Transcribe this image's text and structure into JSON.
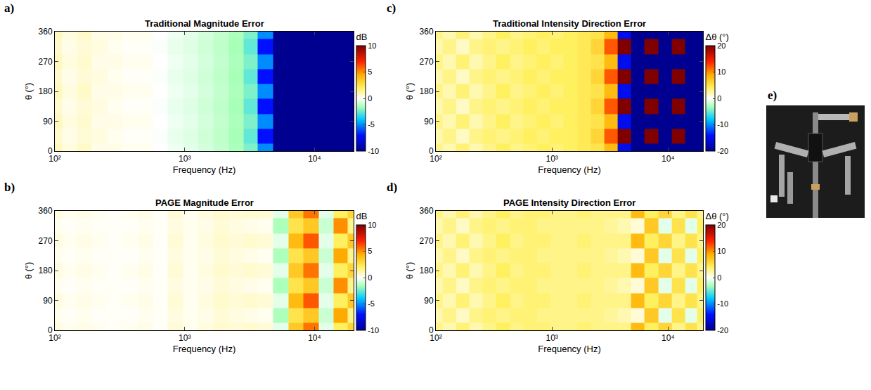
{
  "chart_data": [
    {
      "type": "heatmap",
      "label": "a)",
      "title": "Traditional Magnitude Error",
      "xlabel": "Frequency (Hz)",
      "ylabel": "θ (°)",
      "log": "x",
      "xlim": [
        100,
        20000
      ],
      "xticks": [
        {
          "value": 100,
          "label": "10²"
        },
        {
          "value": 1000,
          "label": "10³"
        },
        {
          "value": 10000,
          "label": "10⁴"
        }
      ],
      "ylim": [
        0,
        360
      ],
      "yticks": [
        0,
        90,
        180,
        270,
        360
      ],
      "x": [
        100,
        130,
        170,
        220,
        290,
        380,
        500,
        650,
        850,
        1100,
        1450,
        1900,
        2500,
        3200,
        4200,
        5500,
        7200,
        9400,
        12300,
        16000,
        20000
      ],
      "y": [
        0,
        45,
        90,
        135,
        180,
        225,
        270,
        315,
        360
      ],
      "z": [
        [
          0.8,
          0.4,
          0.7,
          0.3,
          0.3,
          0.2,
          0.2,
          0.0,
          -0.3,
          -0.5,
          -0.8,
          -1.1,
          -1.5,
          -2.2,
          -5.0,
          -12,
          -16,
          -17,
          -16,
          -18,
          -18
        ],
        [
          0.6,
          0.3,
          0.5,
          0.4,
          0.2,
          0.1,
          0.1,
          -0.1,
          -0.4,
          -0.6,
          -0.9,
          -1.2,
          -1.6,
          -2.6,
          -7.0,
          -13,
          -15,
          -16,
          -18,
          -17,
          -19
        ],
        [
          0.8,
          0.4,
          0.6,
          0.3,
          0.3,
          0.2,
          0.2,
          0.0,
          -0.3,
          -0.5,
          -0.8,
          -1.1,
          -1.5,
          -2.2,
          -5.0,
          -12,
          -16,
          -17,
          -16,
          -18,
          -18
        ],
        [
          0.6,
          0.3,
          0.5,
          0.4,
          0.2,
          0.1,
          0.1,
          -0.1,
          -0.4,
          -0.6,
          -0.9,
          -1.2,
          -1.6,
          -2.6,
          -7.0,
          -13,
          -15,
          -16,
          -18,
          -17,
          -19
        ],
        [
          0.8,
          0.4,
          0.7,
          0.3,
          0.3,
          0.2,
          0.2,
          0.0,
          -0.3,
          -0.5,
          -0.8,
          -1.1,
          -1.5,
          -2.2,
          -5.0,
          -12,
          -16,
          -17,
          -16,
          -18,
          -18
        ],
        [
          0.6,
          0.3,
          0.5,
          0.4,
          0.2,
          0.1,
          0.1,
          -0.1,
          -0.4,
          -0.6,
          -0.9,
          -1.2,
          -1.6,
          -2.6,
          -7.0,
          -13,
          -15,
          -16,
          -18,
          -17,
          -19
        ],
        [
          0.8,
          0.4,
          0.6,
          0.3,
          0.3,
          0.2,
          0.2,
          0.0,
          -0.3,
          -0.5,
          -0.8,
          -1.1,
          -1.5,
          -2.2,
          -5.0,
          -12,
          -16,
          -17,
          -16,
          -18,
          -18
        ],
        [
          0.6,
          0.3,
          0.5,
          0.4,
          0.2,
          0.1,
          0.1,
          -0.1,
          -0.4,
          -0.6,
          -0.9,
          -1.2,
          -1.6,
          -2.6,
          -7.0,
          -13,
          -15,
          -16,
          -18,
          -17,
          -19
        ],
        [
          0.8,
          0.4,
          0.7,
          0.3,
          0.3,
          0.2,
          0.2,
          0.0,
          -0.3,
          -0.5,
          -0.8,
          -1.1,
          -1.5,
          -2.2,
          -5.0,
          -12,
          -16,
          -17,
          -16,
          -18,
          -18
        ]
      ],
      "colorbar": {
        "range": [
          -10,
          10
        ],
        "ticks": [
          -10,
          -5,
          0,
          5,
          10
        ],
        "title": "dB"
      }
    },
    {
      "type": "heatmap",
      "label": "b)",
      "title": "PAGE Magnitude Error",
      "xlabel": "Frequency (Hz)",
      "ylabel": "θ (°)",
      "log": "x",
      "xlim": [
        100,
        20000
      ],
      "xticks": [
        {
          "value": 100,
          "label": "10²"
        },
        {
          "value": 1000,
          "label": "10³"
        },
        {
          "value": 10000,
          "label": "10⁴"
        }
      ],
      "ylim": [
        0,
        360
      ],
      "yticks": [
        0,
        90,
        180,
        270,
        360
      ],
      "x": [
        100,
        130,
        170,
        220,
        290,
        380,
        500,
        650,
        850,
        1100,
        1450,
        1900,
        2500,
        3200,
        4200,
        5500,
        7200,
        9400,
        12300,
        16000,
        20000
      ],
      "y": [
        0,
        45,
        90,
        135,
        180,
        225,
        270,
        315,
        360
      ],
      "z": [
        [
          0.4,
          0.2,
          0.3,
          0.2,
          0.1,
          0.2,
          0.3,
          0.1,
          0.5,
          0.2,
          0.4,
          0.6,
          0.5,
          0.6,
          0.5,
          -0.5,
          3.5,
          5.5,
          -0.5,
          2.0,
          3.0
        ],
        [
          0.2,
          0.1,
          0.2,
          0.1,
          0.1,
          0.1,
          0.2,
          0.1,
          0.4,
          0.2,
          0.3,
          0.5,
          0.4,
          0.3,
          0.2,
          -1.5,
          2.5,
          3.5,
          -1.0,
          4.5,
          1.5
        ],
        [
          0.4,
          0.2,
          0.3,
          0.2,
          0.1,
          0.2,
          0.3,
          0.1,
          0.5,
          0.2,
          0.4,
          0.6,
          0.5,
          0.6,
          0.5,
          -0.5,
          4.0,
          6.0,
          -0.5,
          2.0,
          3.5
        ],
        [
          0.2,
          0.1,
          0.2,
          0.1,
          0.1,
          0.1,
          0.2,
          0.1,
          0.4,
          0.2,
          0.3,
          0.5,
          0.4,
          0.3,
          0.2,
          -1.5,
          2.5,
          3.5,
          -1.0,
          5.0,
          1.5
        ],
        [
          0.4,
          0.2,
          0.3,
          0.2,
          0.1,
          0.2,
          0.3,
          0.1,
          0.5,
          0.2,
          0.4,
          0.6,
          0.5,
          0.6,
          0.5,
          -0.5,
          3.5,
          5.5,
          -0.5,
          2.0,
          3.0
        ],
        [
          0.2,
          0.1,
          0.2,
          0.1,
          0.1,
          0.1,
          0.2,
          0.1,
          0.4,
          0.2,
          0.3,
          0.5,
          0.4,
          0.3,
          0.2,
          -1.5,
          2.5,
          3.5,
          -1.0,
          4.5,
          1.5
        ],
        [
          0.4,
          0.2,
          0.3,
          0.2,
          0.1,
          0.2,
          0.3,
          0.1,
          0.5,
          0.2,
          0.4,
          0.6,
          0.5,
          0.6,
          0.5,
          -0.5,
          4.0,
          6.0,
          -0.5,
          2.0,
          3.5
        ],
        [
          0.2,
          0.1,
          0.2,
          0.1,
          0.1,
          0.1,
          0.2,
          0.1,
          0.4,
          0.2,
          0.3,
          0.5,
          0.4,
          0.3,
          0.2,
          -1.5,
          2.5,
          3.5,
          -1.0,
          5.0,
          1.5
        ],
        [
          0.4,
          0.2,
          0.3,
          0.2,
          0.1,
          0.2,
          0.3,
          0.1,
          0.5,
          0.2,
          0.4,
          0.6,
          0.5,
          0.6,
          0.5,
          -0.5,
          3.5,
          5.5,
          -0.5,
          2.0,
          3.0
        ]
      ],
      "colorbar": {
        "range": [
          -10,
          10
        ],
        "ticks": [
          -10,
          -5,
          0,
          5,
          10
        ],
        "title": "dB"
      }
    },
    {
      "type": "heatmap",
      "label": "c)",
      "title": "Traditional Intensity Direction Error",
      "xlabel": "Frequency (Hz)",
      "ylabel": "θ (°)",
      "log": "x",
      "xlim": [
        100,
        20000
      ],
      "xticks": [
        {
          "value": 100,
          "label": "10²"
        },
        {
          "value": 1000,
          "label": "10³"
        },
        {
          "value": 10000,
          "label": "10⁴"
        }
      ],
      "ylim": [
        0,
        360
      ],
      "yticks": [
        0,
        90,
        180,
        270,
        360
      ],
      "x": [
        100,
        130,
        170,
        220,
        290,
        380,
        500,
        650,
        850,
        1100,
        1450,
        1900,
        2500,
        3200,
        4200,
        5500,
        7200,
        9400,
        12300,
        16000,
        20000
      ],
      "y": [
        0,
        45,
        90,
        135,
        180,
        225,
        270,
        315,
        360
      ],
      "z": [
        [
          3,
          2,
          3.5,
          2,
          3,
          4,
          3,
          3.5,
          4,
          3.5,
          4,
          4.5,
          5,
          8,
          -15,
          -20,
          -20,
          -20,
          -20,
          -20,
          -20
        ],
        [
          2,
          3,
          1.5,
          3,
          3.5,
          3,
          3.5,
          4,
          3.5,
          4,
          4,
          4.5,
          6,
          12,
          20,
          -20,
          20,
          -20,
          20,
          -20,
          -20
        ],
        [
          3,
          2,
          3.5,
          2,
          3,
          4,
          3,
          3.5,
          4,
          3.5,
          4,
          4.5,
          5,
          8,
          -15,
          -20,
          -20,
          -20,
          -20,
          -20,
          -20
        ],
        [
          2,
          3,
          1.5,
          3,
          3.5,
          3,
          3.5,
          4,
          3.5,
          4,
          4,
          4.5,
          6,
          12,
          20,
          -20,
          20,
          -20,
          20,
          -20,
          -20
        ],
        [
          3,
          2,
          3.5,
          2,
          3,
          4,
          3,
          3.5,
          4,
          3.5,
          4,
          4.5,
          5,
          8,
          -15,
          -20,
          -20,
          -20,
          -20,
          -20,
          -20
        ],
        [
          2,
          3,
          1.5,
          3,
          3.5,
          3,
          3.5,
          4,
          3.5,
          4,
          4,
          4.5,
          6,
          12,
          20,
          -20,
          20,
          -20,
          20,
          -20,
          -20
        ],
        [
          3,
          2,
          3.5,
          2,
          3,
          4,
          3,
          3.5,
          4,
          3.5,
          4,
          4.5,
          5,
          8,
          -15,
          -20,
          -20,
          -20,
          -20,
          -20,
          -20
        ],
        [
          2,
          3,
          1.5,
          3,
          3.5,
          3,
          3.5,
          4,
          3.5,
          4,
          4,
          4.5,
          6,
          12,
          20,
          -20,
          20,
          -20,
          20,
          -20,
          -20
        ],
        [
          3,
          2,
          3.5,
          2,
          3,
          4,
          3,
          3.5,
          4,
          3.5,
          4,
          4.5,
          5,
          8,
          -15,
          -20,
          -20,
          -20,
          -20,
          -20,
          -20
        ]
      ],
      "colorbar": {
        "range": [
          -20,
          20
        ],
        "ticks": [
          -20,
          -10,
          0,
          10,
          20
        ],
        "title": "Δθ (°)"
      }
    },
    {
      "type": "heatmap",
      "label": "d)",
      "title": "PAGE Intensity Direction Error",
      "xlabel": "Frequency (Hz)",
      "ylabel": "θ (°)",
      "log": "x",
      "xlim": [
        100,
        20000
      ],
      "xticks": [
        {
          "value": 100,
          "label": "10²"
        },
        {
          "value": 1000,
          "label": "10³"
        },
        {
          "value": 10000,
          "label": "10⁴"
        }
      ],
      "ylim": [
        0,
        360
      ],
      "yticks": [
        0,
        90,
        180,
        270,
        360
      ],
      "x": [
        100,
        130,
        170,
        220,
        290,
        380,
        500,
        650,
        850,
        1100,
        1450,
        1900,
        2500,
        3200,
        4200,
        5500,
        7200,
        9400,
        12300,
        16000,
        20000
      ],
      "y": [
        0,
        45,
        90,
        135,
        180,
        225,
        270,
        315,
        360
      ],
      "z": [
        [
          3,
          2,
          3.5,
          2,
          3,
          4,
          3,
          3.5,
          3.5,
          3,
          3,
          3.5,
          3,
          3,
          3,
          8,
          4,
          6,
          3,
          5,
          3
        ],
        [
          2,
          3,
          1.5,
          3,
          3.5,
          3,
          3.5,
          3.5,
          3,
          3,
          3,
          3,
          3,
          2.5,
          2,
          1,
          7,
          -1,
          5,
          -1,
          4
        ],
        [
          3,
          2,
          3.5,
          2,
          3,
          4,
          3,
          3.5,
          3.5,
          3,
          3,
          3.5,
          3,
          3,
          3,
          8,
          4,
          6,
          3,
          5,
          3
        ],
        [
          2,
          3,
          1.5,
          3,
          3.5,
          3,
          3.5,
          3.5,
          3,
          3,
          3,
          3,
          3,
          2.5,
          2,
          1,
          7,
          -1,
          5,
          -1,
          4
        ],
        [
          3,
          2,
          3.5,
          2,
          3,
          4,
          3,
          3.5,
          3.5,
          3,
          3,
          3.5,
          3,
          3,
          3,
          8,
          4,
          6,
          3,
          5,
          3
        ],
        [
          2,
          3,
          1.5,
          3,
          3.5,
          3,
          3.5,
          3.5,
          3,
          3,
          3,
          3,
          3,
          2.5,
          2,
          1,
          7,
          -1,
          5,
          -1,
          4
        ],
        [
          3,
          2,
          3.5,
          2,
          3,
          4,
          3,
          3.5,
          3.5,
          3,
          3,
          3.5,
          3,
          3,
          3,
          8,
          4,
          6,
          3,
          5,
          3
        ],
        [
          2,
          3,
          1.5,
          3,
          3.5,
          3,
          3.5,
          3.5,
          3,
          3,
          3,
          3,
          3,
          2.5,
          2,
          1,
          7,
          -1,
          5,
          -1,
          4
        ],
        [
          3,
          2,
          3.5,
          2,
          3,
          4,
          3,
          3.5,
          3.5,
          3,
          3,
          3.5,
          3,
          3,
          3,
          8,
          4,
          6,
          3,
          5,
          3
        ]
      ],
      "colorbar": {
        "range": [
          -20,
          20
        ],
        "ticks": [
          -20,
          -10,
          0,
          10,
          20
        ],
        "title": "Δθ (°)"
      }
    }
  ],
  "photo": {
    "label": "e)"
  }
}
